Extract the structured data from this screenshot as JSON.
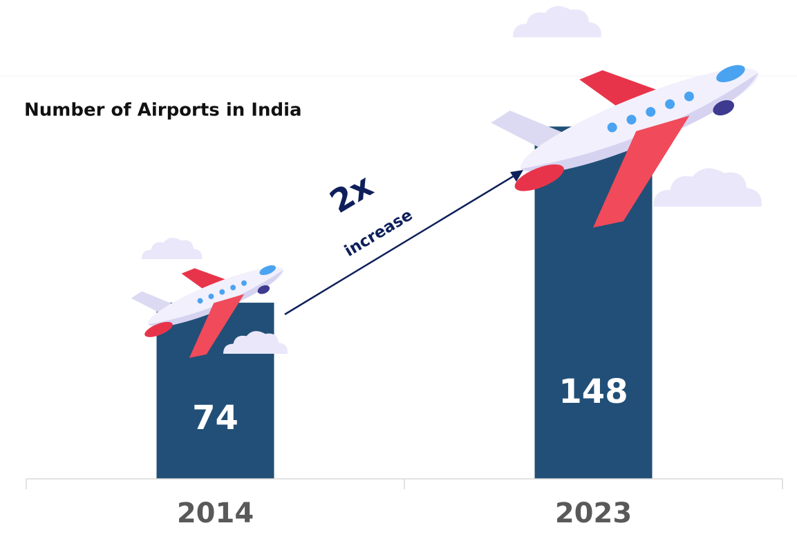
{
  "chart_data": {
    "type": "bar",
    "title": "Number of Airports in India",
    "categories": [
      "2014",
      "2023"
    ],
    "values": [
      74,
      148
    ],
    "color": "#214f77",
    "annotation": {
      "multiplier": "2x",
      "text": "increase"
    }
  }
}
